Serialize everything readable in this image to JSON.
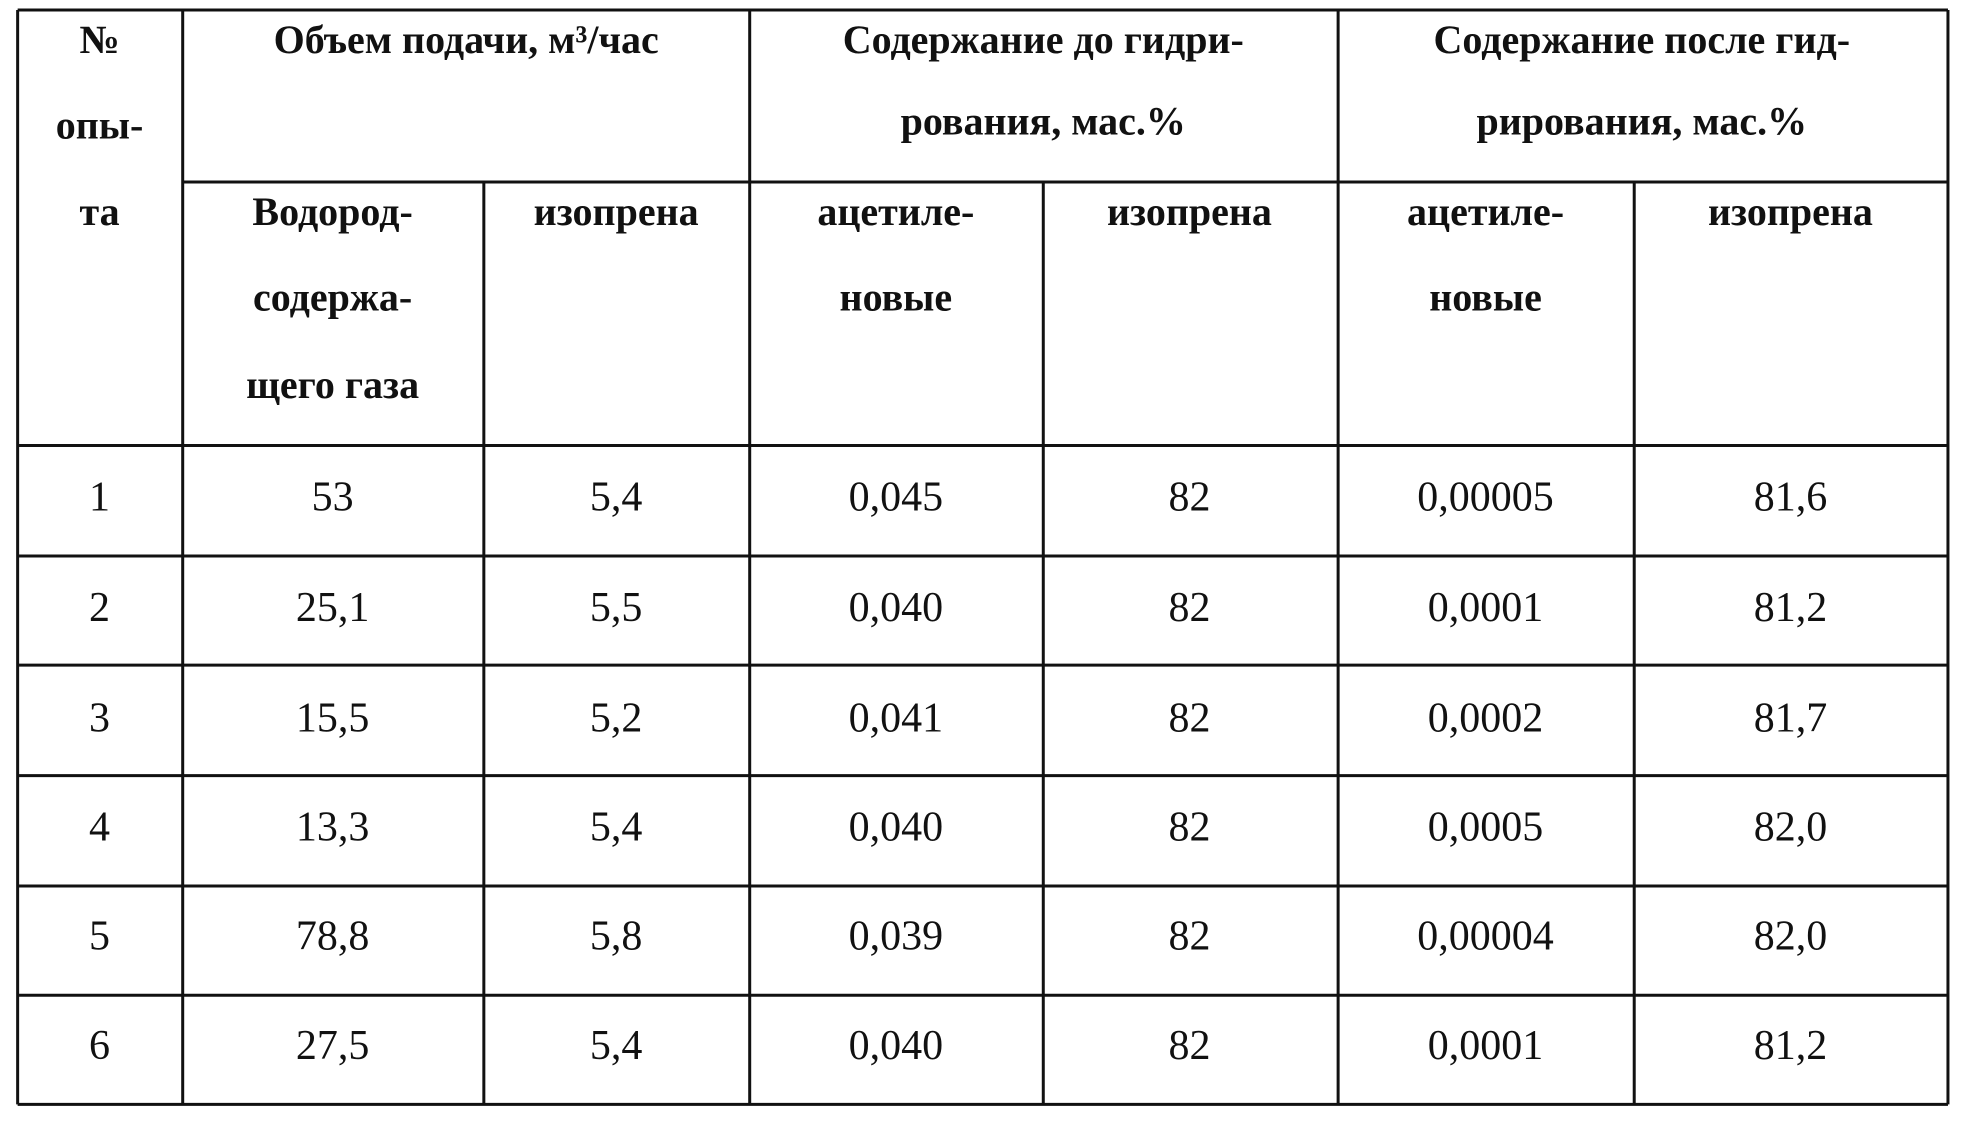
{
  "header": {
    "number": [
      "№",
      "опы-",
      "та"
    ],
    "feed": {
      "title": [
        "Объем подачи, м³/час"
      ],
      "columns": [
        [
          "Водород-",
          "содержа-",
          "щего газа"
        ],
        [
          "изопрена"
        ]
      ]
    },
    "before": {
      "title": [
        "Содержание до гидри-",
        "рования, мас.%"
      ],
      "columns": [
        [
          "ацетиле-",
          "новые"
        ],
        [
          "изопрена"
        ]
      ]
    },
    "after": {
      "title": [
        "Содержание после гид-",
        "рирования, мас.%"
      ],
      "columns": [
        [
          "ацетиле-",
          "новые"
        ],
        [
          "изопрена"
        ]
      ]
    }
  },
  "rows": [
    [
      "1",
      "53",
      "5,4",
      "0,045",
      "82",
      "0,00005",
      "81,6"
    ],
    [
      "2",
      "25,1",
      "5,5",
      "0,040",
      "82",
      "0,0001",
      "81,2"
    ],
    [
      "3",
      "15,5",
      "5,2",
      "0,041",
      "82",
      "0,0002",
      "81,7"
    ],
    [
      "4",
      "13,3",
      "5,4",
      "0,040",
      "82",
      "0,0005",
      "82,0"
    ],
    [
      "5",
      "78,8",
      "5,8",
      "0,039",
      "82",
      "0,00004",
      "82,0"
    ],
    [
      "6",
      "27,5",
      "5,4",
      "0,040",
      "82",
      "0,0001",
      "81,2"
    ]
  ]
}
